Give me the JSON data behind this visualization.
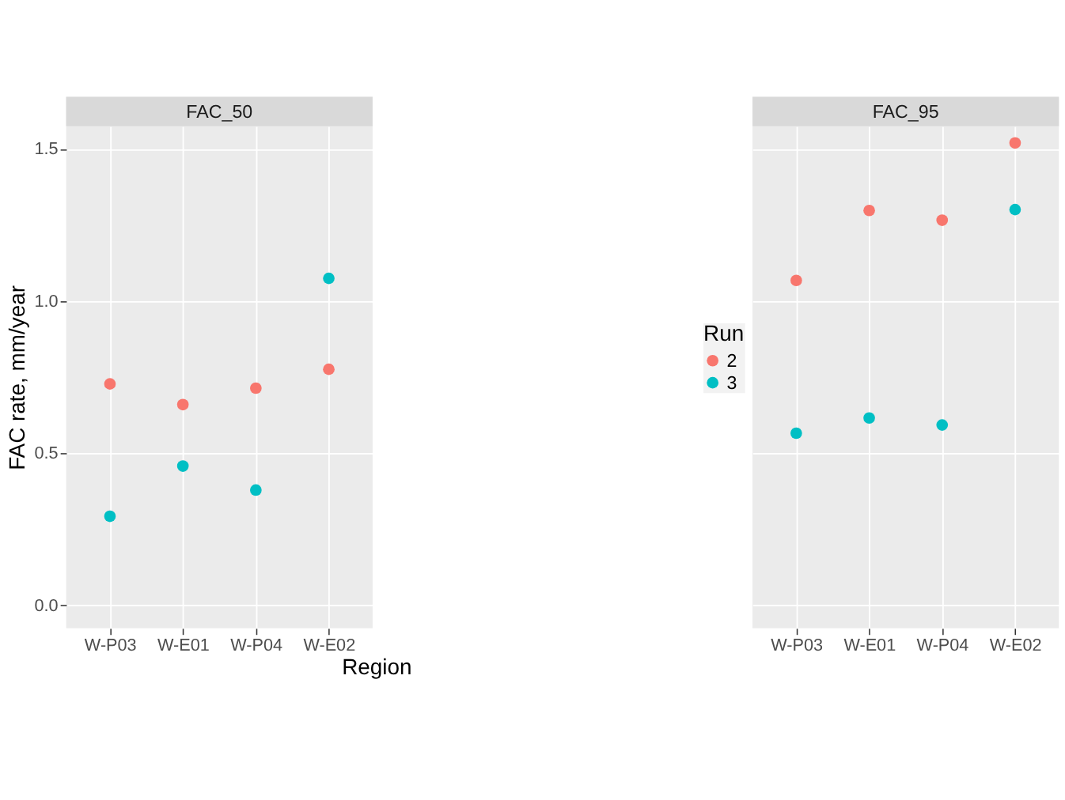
{
  "chart_data": [
    {
      "type": "scatter",
      "title": "FAC_50",
      "xlabel": "Region",
      "ylabel": "FAC rate, mm/year",
      "categories": [
        "W-P03",
        "W-E01",
        "W-P04",
        "W-E02"
      ],
      "series": [
        {
          "name": "2",
          "color": "#f8766d",
          "values": [
            0.728,
            0.66,
            0.714,
            0.776
          ]
        },
        {
          "name": "3",
          "color": "#00bfc4",
          "values": [
            0.293,
            0.458,
            0.379,
            1.075
          ]
        }
      ],
      "ylim": [
        -0.075,
        1.575
      ],
      "yticks": [
        {
          "value": 0,
          "label": "0.0"
        },
        0.5,
        {
          "value": 1,
          "label": "1.0"
        },
        1.5
      ],
      "grid": true,
      "legend": "right",
      "legend_title": "Run",
      "marker": "circle"
    },
    {
      "type": "scatter",
      "title": "FAC_95",
      "categories": [
        "W-P03",
        "W-E01",
        "W-P04",
        "W-E02"
      ],
      "series": [
        {
          "name": "2",
          "color": "#f8766d",
          "values": [
            1.068,
            1.298,
            1.266,
            1.52
          ]
        },
        {
          "name": "3",
          "color": "#00bfc4",
          "values": [
            0.566,
            0.616,
            0.593,
            1.301
          ]
        }
      ],
      "ylim": [
        -0.075,
        1.575
      ],
      "yticks": [
        0,
        0.5,
        1,
        1.5
      ],
      "tick_labels": "x",
      "grid": true,
      "legend": false,
      "marker": "circle"
    }
  ]
}
